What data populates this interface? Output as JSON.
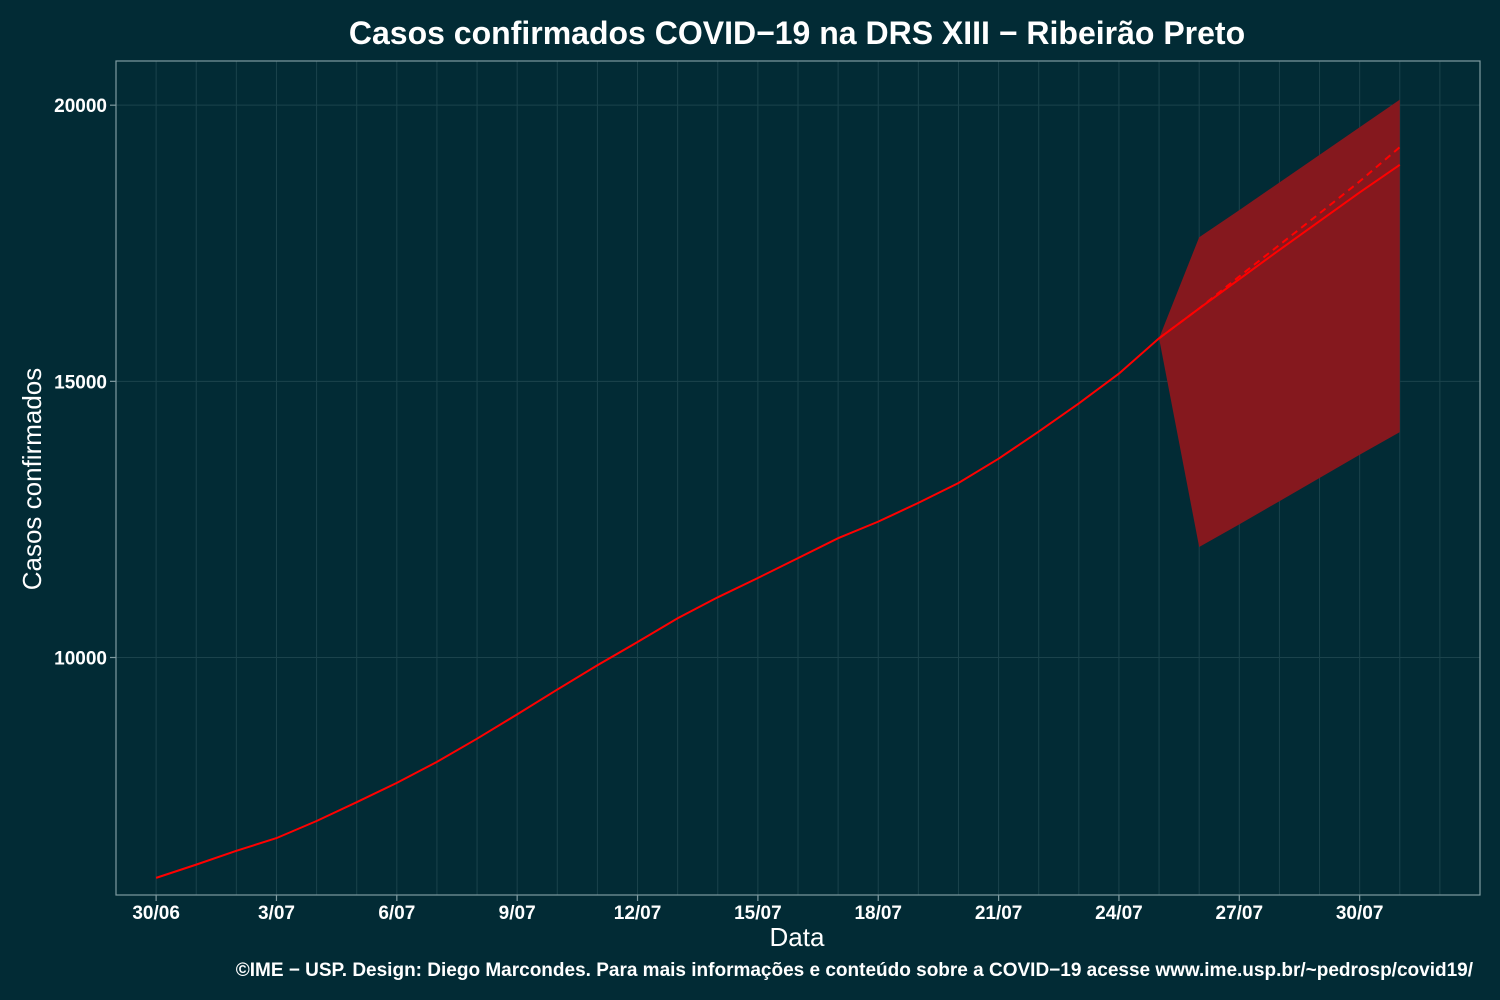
{
  "colors": {
    "background": "#022b35",
    "grid": "#1b434c",
    "frame": "#7f9aa0",
    "line": "#ff0000",
    "band": "#85181e",
    "text": "#ffffff"
  },
  "chart_data": {
    "type": "line",
    "title": "Casos confirmados COVID−19 na DRS XIII − Ribeirão Preto",
    "xlabel": "Data",
    "ylabel": "Casos confirmados",
    "caption": "©IME − USP. Design: Diego Marcondes. Para mais informações e conteúdo sobre a COVID−19 acesse www.ime.usp.br/~pedrosp/covid19/",
    "x_ticks": [
      "30/06",
      "3/07",
      "6/07",
      "9/07",
      "12/07",
      "15/07",
      "18/07",
      "21/07",
      "24/07",
      "27/07",
      "30/07"
    ],
    "y_ticks": [
      10000,
      15000,
      20000
    ],
    "xlim": [
      "2020-06-29",
      "2020-08-02"
    ],
    "ylim": [
      5700,
      20800
    ],
    "grid": true,
    "observed": {
      "x": [
        "2020-06-30",
        "2020-07-01",
        "2020-07-02",
        "2020-07-03",
        "2020-07-04",
        "2020-07-05",
        "2020-07-06",
        "2020-07-07",
        "2020-07-08",
        "2020-07-09",
        "2020-07-10",
        "2020-07-11",
        "2020-07-12",
        "2020-07-13",
        "2020-07-14",
        "2020-07-15",
        "2020-07-16",
        "2020-07-17",
        "2020-07-18",
        "2020-07-19",
        "2020-07-20",
        "2020-07-21",
        "2020-07-22",
        "2020-07-23",
        "2020-07-24",
        "2020-07-25"
      ],
      "y": [
        6010,
        6250,
        6500,
        6730,
        7040,
        7380,
        7730,
        8110,
        8530,
        8970,
        9420,
        9860,
        10280,
        10710,
        11090,
        11440,
        11800,
        12160,
        12460,
        12800,
        13160,
        13600,
        14090,
        14600,
        15140,
        15780
      ]
    },
    "forecast": {
      "x": [
        "2020-07-25",
        "2020-07-26",
        "2020-07-27",
        "2020-07-28",
        "2020-07-29",
        "2020-07-30",
        "2020-07-31"
      ],
      "central": [
        15780,
        16320,
        16850,
        17380,
        17900,
        18420,
        18920
      ],
      "dashed": [
        15780,
        16320,
        16900,
        17470,
        18040,
        18620,
        19240
      ],
      "upper": [
        15780,
        17610,
        18100,
        18600,
        19100,
        19600,
        20100
      ],
      "lower": [
        15780,
        12000,
        12410,
        12830,
        13250,
        13670,
        14080
      ]
    }
  }
}
